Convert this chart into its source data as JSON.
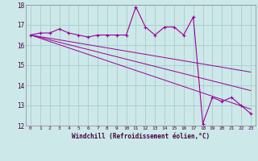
{
  "xlabel": "Windchill (Refroidissement éolien,°C)",
  "bg_color": "#cce8e8",
  "grid_color": "#aacccc",
  "line_color": "#990099",
  "xlim": [
    -0.5,
    23.5
  ],
  "ylim": [
    12,
    18
  ],
  "xticks": [
    0,
    1,
    2,
    3,
    4,
    5,
    6,
    7,
    8,
    9,
    10,
    11,
    12,
    13,
    14,
    15,
    16,
    17,
    18,
    19,
    20,
    21,
    22,
    23
  ],
  "yticks": [
    12,
    13,
    14,
    15,
    16,
    17,
    18
  ],
  "hours": [
    0,
    1,
    2,
    3,
    4,
    5,
    6,
    7,
    8,
    9,
    10,
    11,
    12,
    13,
    14,
    15,
    16,
    17,
    18,
    19,
    20,
    21,
    22,
    23
  ],
  "windchill": [
    16.5,
    16.6,
    16.6,
    16.8,
    16.6,
    16.5,
    16.4,
    16.5,
    16.5,
    16.5,
    16.5,
    17.9,
    16.9,
    16.5,
    16.9,
    16.9,
    16.5,
    17.4,
    12.1,
    13.4,
    13.2,
    13.4,
    13.0,
    12.6
  ],
  "trend1": [
    16.5,
    16.42,
    16.34,
    16.26,
    16.18,
    16.1,
    16.02,
    15.94,
    15.86,
    15.78,
    15.7,
    15.62,
    15.54,
    15.46,
    15.38,
    15.3,
    15.22,
    15.14,
    15.06,
    14.98,
    14.9,
    14.82,
    14.74,
    14.66
  ],
  "trend2": [
    16.5,
    16.38,
    16.26,
    16.14,
    16.02,
    15.9,
    15.78,
    15.66,
    15.54,
    15.42,
    15.3,
    15.18,
    15.06,
    14.94,
    14.82,
    14.7,
    14.58,
    14.46,
    14.34,
    14.22,
    14.1,
    13.98,
    13.86,
    13.74
  ],
  "trend3": [
    16.5,
    16.34,
    16.18,
    16.02,
    15.86,
    15.7,
    15.54,
    15.38,
    15.22,
    15.06,
    14.9,
    14.74,
    14.58,
    14.42,
    14.26,
    14.1,
    13.94,
    13.78,
    13.62,
    13.46,
    13.3,
    13.14,
    12.98,
    12.82
  ]
}
